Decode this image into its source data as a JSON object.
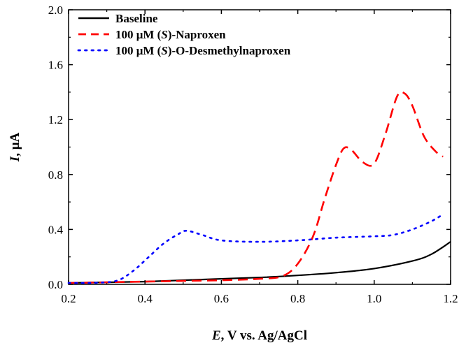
{
  "chart_data": {
    "type": "line",
    "xlabel": {
      "var": "E",
      "rest": ", V vs. Ag/AgCl"
    },
    "ylabel": {
      "var": "I",
      "rest": ", μA"
    },
    "xlim": [
      0.2,
      1.2
    ],
    "ylim": [
      0,
      2.0
    ],
    "xticks": [
      "0.2",
      "0.4",
      "0.6",
      "0.8",
      "1.0",
      "1.2"
    ],
    "yticks": [
      "0.0",
      "0.4",
      "0.8",
      "1.2",
      "1.6",
      "2.0"
    ],
    "legend_position": "top-left",
    "series": [
      {
        "name": "Baseline",
        "legend_parts": [
          {
            "t": "Baseline",
            "i": false
          }
        ],
        "color": "#000000",
        "style": "solid",
        "points": [
          [
            0.2,
            0.01
          ],
          [
            0.3,
            0.015
          ],
          [
            0.4,
            0.02
          ],
          [
            0.5,
            0.03
          ],
          [
            0.6,
            0.04
          ],
          [
            0.7,
            0.05
          ],
          [
            0.8,
            0.065
          ],
          [
            0.9,
            0.085
          ],
          [
            1.0,
            0.115
          ],
          [
            1.1,
            0.17
          ],
          [
            1.15,
            0.22
          ],
          [
            1.2,
            0.31
          ]
        ]
      },
      {
        "name": "100 µM (S)-Naproxen",
        "legend_parts": [
          {
            "t": "100 μM (",
            "i": false
          },
          {
            "t": "S",
            "i": true
          },
          {
            "t": ")-Naproxen",
            "i": false
          }
        ],
        "color": "#ff0000",
        "style": "dashed",
        "points": [
          [
            0.2,
            0.01
          ],
          [
            0.3,
            0.015
          ],
          [
            0.4,
            0.02
          ],
          [
            0.5,
            0.025
          ],
          [
            0.6,
            0.03
          ],
          [
            0.7,
            0.04
          ],
          [
            0.76,
            0.06
          ],
          [
            0.8,
            0.15
          ],
          [
            0.84,
            0.35
          ],
          [
            0.87,
            0.62
          ],
          [
            0.9,
            0.87
          ],
          [
            0.92,
            0.99
          ],
          [
            0.94,
            0.98
          ],
          [
            0.97,
            0.89
          ],
          [
            1.0,
            0.88
          ],
          [
            1.03,
            1.1
          ],
          [
            1.06,
            1.37
          ],
          [
            1.08,
            1.39
          ],
          [
            1.1,
            1.3
          ],
          [
            1.13,
            1.08
          ],
          [
            1.16,
            0.97
          ],
          [
            1.18,
            0.93
          ]
        ]
      },
      {
        "name": "100 µM (S)-O-Desmethylnaproxen",
        "legend_parts": [
          {
            "t": "100 μM (",
            "i": false
          },
          {
            "t": "S",
            "i": true
          },
          {
            "t": ")-O-Desmethylnaproxen",
            "i": false
          }
        ],
        "color": "#0000ff",
        "style": "dotted",
        "points": [
          [
            0.2,
            0.01
          ],
          [
            0.28,
            0.012
          ],
          [
            0.33,
            0.03
          ],
          [
            0.37,
            0.1
          ],
          [
            0.41,
            0.2
          ],
          [
            0.45,
            0.3
          ],
          [
            0.49,
            0.37
          ],
          [
            0.51,
            0.39
          ],
          [
            0.55,
            0.36
          ],
          [
            0.6,
            0.32
          ],
          [
            0.7,
            0.31
          ],
          [
            0.8,
            0.32
          ],
          [
            0.9,
            0.34
          ],
          [
            1.0,
            0.35
          ],
          [
            1.05,
            0.36
          ],
          [
            1.1,
            0.4
          ],
          [
            1.15,
            0.46
          ],
          [
            1.18,
            0.51
          ]
        ]
      }
    ]
  }
}
